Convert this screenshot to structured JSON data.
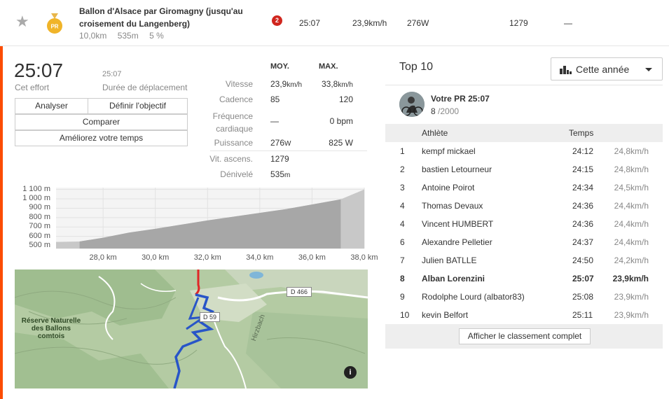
{
  "segment": {
    "title": "Ballon d'Alsace par Giromagny (jusqu'au croisement du Langenberg)",
    "distance": "10,0km",
    "elevation": "535m",
    "grade": "5 %",
    "badge_count": "2",
    "pr_medal_label": "PR",
    "row_time": "25:07",
    "row_speed": "23,9km/h",
    "row_power": "276W",
    "row_vam": "1279",
    "row_dash": "—"
  },
  "effort": {
    "time": "25:07",
    "time_label": "Cet effort",
    "moving_time": "25:07",
    "moving_label": "Durée de déplacement",
    "buttons": {
      "analyze": "Analyser",
      "goal": "Définir l'objectif",
      "compare": "Comparer",
      "improve": "Améliorez votre temps"
    }
  },
  "stats": {
    "head_avg": "MOY.",
    "head_max": "MAX.",
    "rows": [
      {
        "label": "Vitesse",
        "avg": "23,9",
        "avg_unit": "km/h",
        "max": "33,8",
        "max_unit": "km/h"
      },
      {
        "label": "Cadence",
        "avg": "85",
        "avg_unit": "",
        "max": "120",
        "max_unit": ""
      },
      {
        "label": "Fréquence cardiaque",
        "avg": "—",
        "avg_unit": "",
        "max": "0",
        "max_unit": " bpm"
      },
      {
        "label": "Puissance",
        "avg": "276",
        "avg_unit": "W",
        "max": "825",
        "max_unit": " W"
      },
      {
        "label": "Vit. ascens.",
        "avg": "1279",
        "avg_unit": "",
        "max": "",
        "max_unit": ""
      },
      {
        "label": "Dénivelé",
        "avg": "535",
        "avg_unit": "m",
        "max": "",
        "max_unit": ""
      }
    ]
  },
  "chart_data": {
    "type": "area",
    "xlabel": "",
    "ylabel": "",
    "y_ticks": [
      "1 100 m",
      "1 000 m",
      "900 m",
      "800 m",
      "700 m",
      "600 m",
      "500 m"
    ],
    "y_tick_values": [
      1100,
      1000,
      900,
      800,
      700,
      600,
      500
    ],
    "x_ticks": [
      "28,0 km",
      "30,0 km",
      "32,0 km",
      "34,0 km",
      "36,0 km",
      "38,0 km"
    ],
    "x_tick_values": [
      28,
      30,
      32,
      34,
      36,
      38
    ],
    "xlim": [
      26.2,
      38.0
    ],
    "ylim": [
      470,
      1120
    ],
    "segment_range_km": [
      27.1,
      37.1
    ],
    "x": [
      26.2,
      27.1,
      28.0,
      29.0,
      30.0,
      31.0,
      32.0,
      33.0,
      34.0,
      35.0,
      36.0,
      37.1,
      38.0
    ],
    "y": [
      540,
      545,
      585,
      640,
      680,
      725,
      770,
      810,
      850,
      890,
      940,
      995,
      1100
    ]
  },
  "map": {
    "reserve_label": "Réserve Naturelle des Ballons comtois",
    "road1": "D 466",
    "road2": "D 59",
    "river": "Hirzbach",
    "info_icon": "i"
  },
  "leaderboard": {
    "title": "Top 10",
    "filter": "Cette année",
    "pr_label": "Votre PR 25:07",
    "pr_rank": "8",
    "pr_total": " /2000",
    "col_athlete": "Athlète",
    "col_time": "Temps",
    "rows": [
      {
        "rank": "1",
        "name": "kempf mickael",
        "time": "24:12",
        "speed": "24,8km/h"
      },
      {
        "rank": "2",
        "name": "bastien Letourneur",
        "time": "24:15",
        "speed": "24,8km/h"
      },
      {
        "rank": "3",
        "name": "Antoine Poirot",
        "time": "24:34",
        "speed": "24,5km/h"
      },
      {
        "rank": "4",
        "name": "Thomas Devaux",
        "time": "24:36",
        "speed": "24,4km/h"
      },
      {
        "rank": "4",
        "name": "Vincent HUMBERT",
        "time": "24:36",
        "speed": "24,4km/h"
      },
      {
        "rank": "6",
        "name": "Alexandre Pelletier",
        "time": "24:37",
        "speed": "24,4km/h"
      },
      {
        "rank": "7",
        "name": "Julien BATLLE",
        "time": "24:50",
        "speed": "24,2km/h"
      },
      {
        "rank": "8",
        "name": "Alban Lorenzini",
        "time": "25:07",
        "speed": "23,9km/h"
      },
      {
        "rank": "9",
        "name": "Rodolphe Lourd (albator83)",
        "time": "25:08",
        "speed": "23,9km/h"
      },
      {
        "rank": "10",
        "name": "kevin Belfort",
        "time": "25:11",
        "speed": "23,9km/h"
      }
    ],
    "highlight_index": 7,
    "full_button": "Afficher le classement complet"
  }
}
